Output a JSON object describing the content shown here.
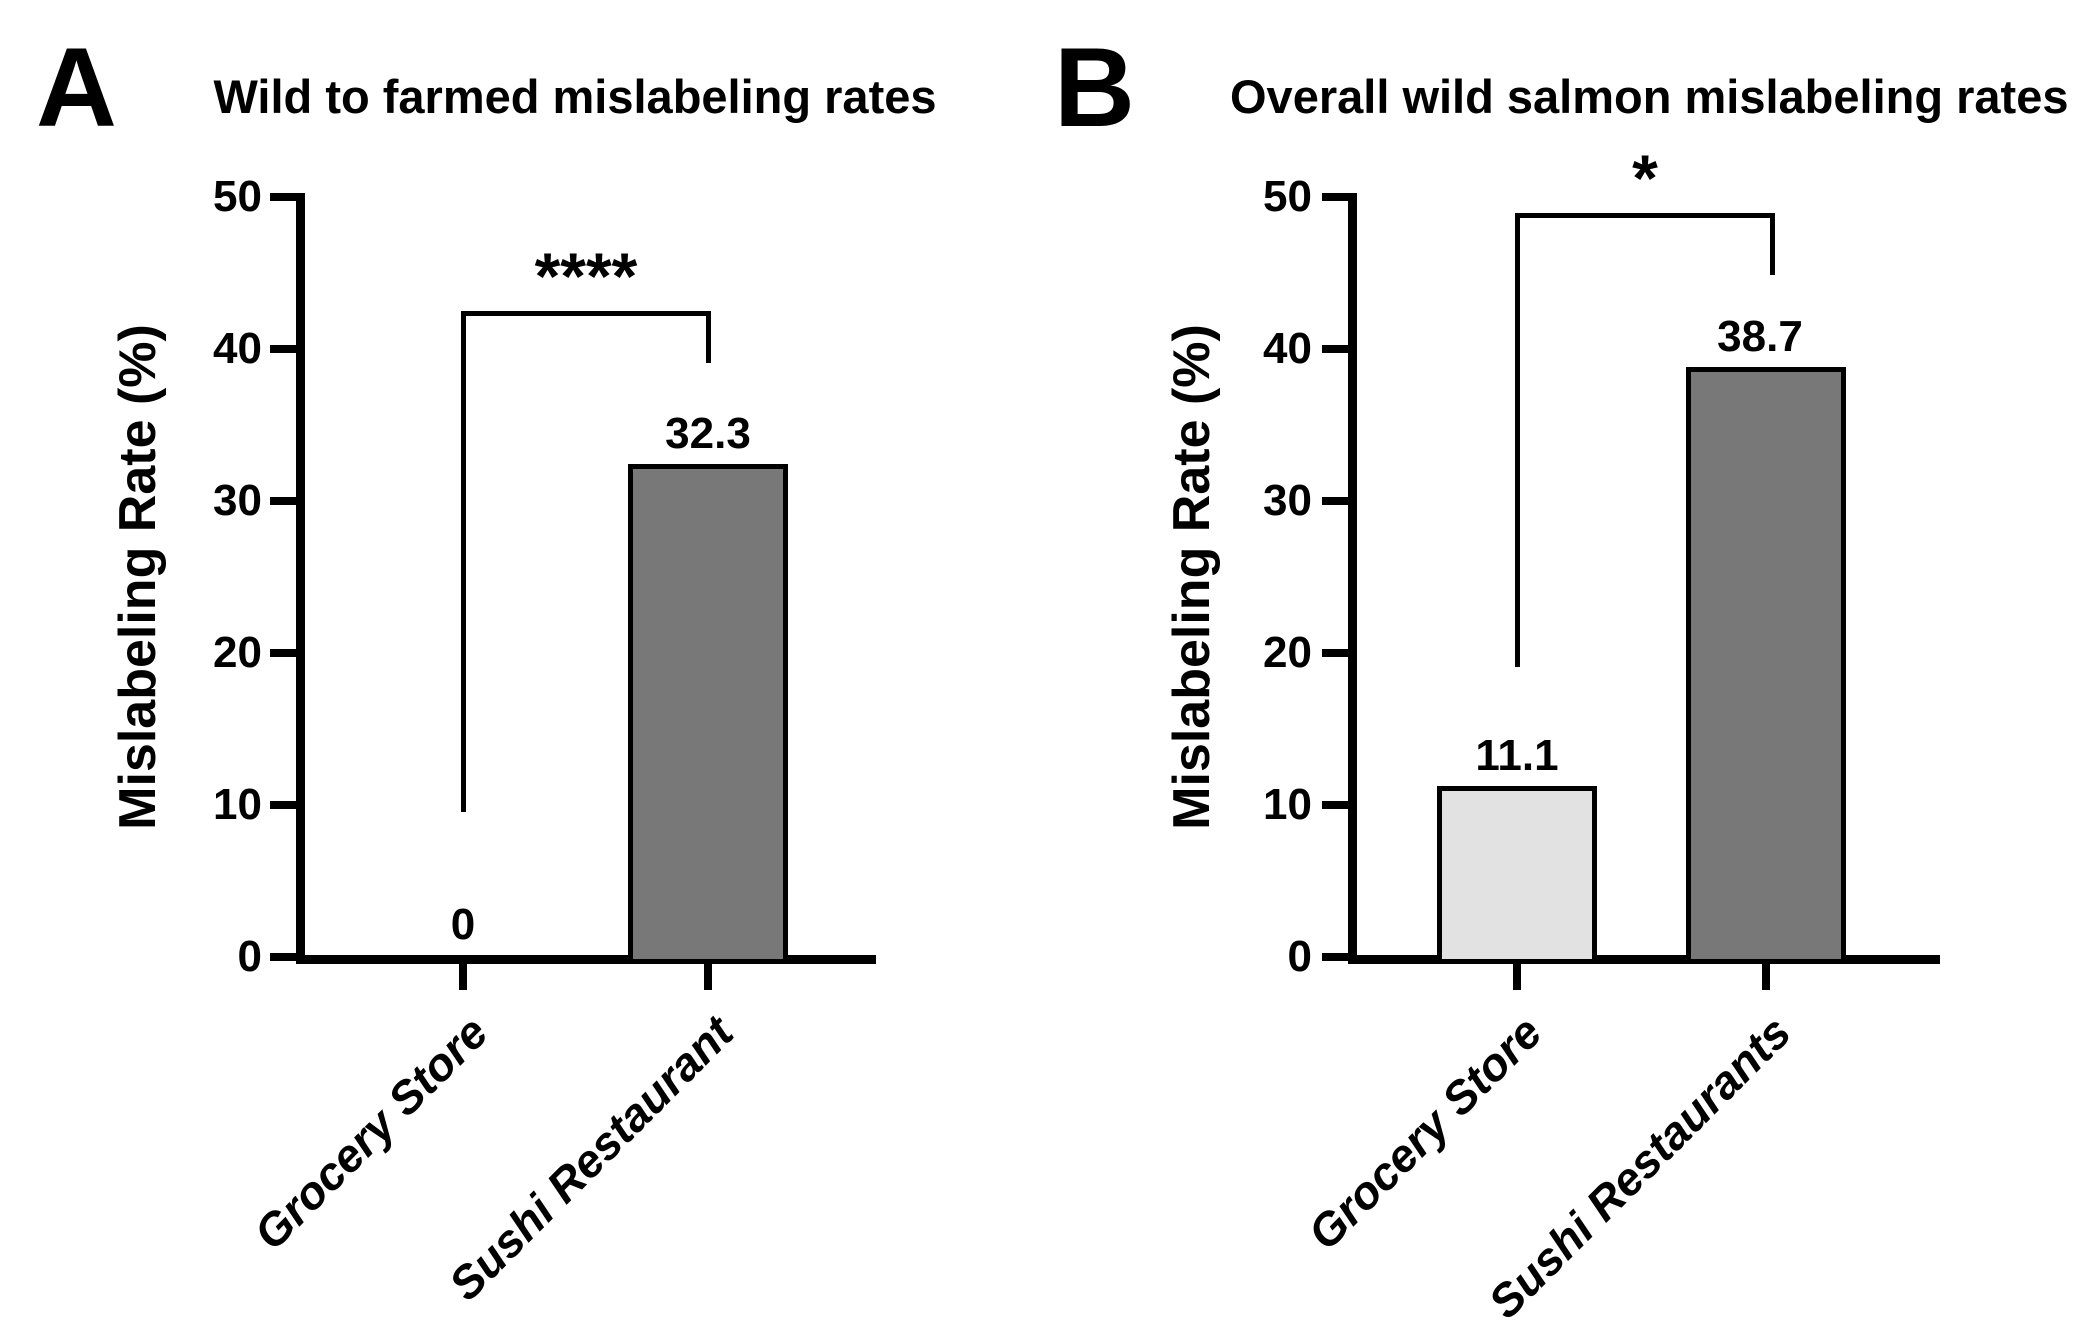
{
  "figure": {
    "panels": [
      {
        "label": "A",
        "title": "Wild to farmed mislabeling rates",
        "significance_marker": "****"
      },
      {
        "label": "B",
        "title": "Overall wild salmon mislabeling rates",
        "significance_marker": "*"
      }
    ]
  },
  "chart_data": [
    {
      "type": "bar",
      "panel": "A",
      "title": "Wild to farmed mislabeling rates",
      "categories": [
        "Grocery Store",
        "Sushi Restaurant"
      ],
      "values": [
        0,
        32.3
      ],
      "value_labels": [
        "0",
        "32.3"
      ],
      "bar_colors": [
        "none",
        "#787878"
      ],
      "bar_border_color": "#000000",
      "xlabel": "",
      "ylabel": "Mislabeling Rate (%)",
      "ylim": [
        0,
        50
      ],
      "yticks": [
        0,
        10,
        20,
        30,
        40,
        50
      ],
      "grid": false,
      "legend": "none",
      "significance": {
        "marker": "****",
        "between": [
          "Grocery Store",
          "Sushi Restaurant"
        ]
      }
    },
    {
      "type": "bar",
      "panel": "B",
      "title": "Overall wild salmon mislabeling rates",
      "categories": [
        "Grocery Store",
        "Sushi Restaurants"
      ],
      "values": [
        11.1,
        38.7
      ],
      "value_labels": [
        "11.1",
        "38.7"
      ],
      "bar_colors": [
        "#e2e2e2",
        "#787878"
      ],
      "bar_border_color": "#000000",
      "xlabel": "",
      "ylabel": "Mislabeling Rate (%)",
      "ylim": [
        0,
        50
      ],
      "yticks": [
        0,
        10,
        20,
        30,
        40,
        50
      ],
      "grid": false,
      "legend": "none",
      "significance": {
        "marker": "*",
        "between": [
          "Grocery Store",
          "Sushi Restaurants"
        ]
      }
    }
  ]
}
